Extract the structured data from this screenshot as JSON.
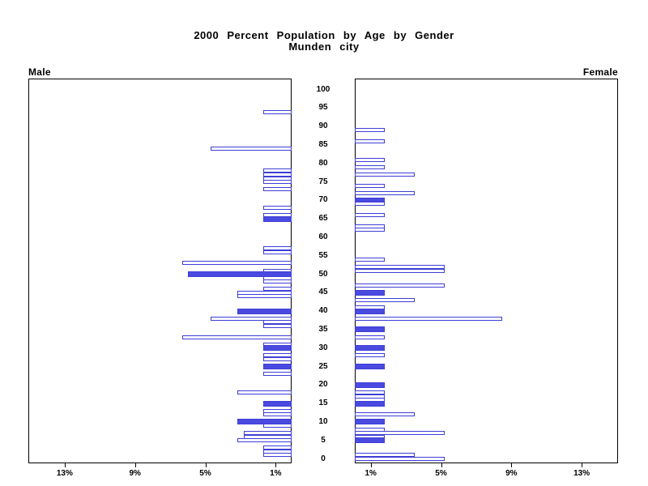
{
  "chart_data": {
    "type": "bar",
    "subtype": "population-pyramid",
    "title": "2000 Percent Population by Age by Gender",
    "subtitle": "Munden city",
    "panels": {
      "left": "Male",
      "right": "Female"
    },
    "age_axis": {
      "tick_labels": [
        "100",
        "95",
        "90",
        "85",
        "80",
        "75",
        "70",
        "65",
        "60",
        "55",
        "50",
        "45",
        "40",
        "35",
        "30",
        "25",
        "20",
        "15",
        "10",
        "5",
        "0"
      ],
      "range": [
        0,
        100
      ]
    },
    "pct_axis": {
      "male_tick_labels": [
        "13%",
        "9%",
        "5%",
        "1%"
      ],
      "female_tick_labels": [
        "1%",
        "5%",
        "9%",
        "13%"
      ],
      "tick_values": [
        13,
        9,
        5,
        1
      ],
      "unit": "%",
      "max": 14.5,
      "grid": false
    },
    "colors": {
      "bar_outline": "#3e3ed6",
      "bar_solid_fill": "#4a4ae0",
      "axis": "#000000",
      "background": "#ffffff"
    },
    "male": [
      {
        "age": 94,
        "pct": 1.6,
        "solid": false
      },
      {
        "age": 84,
        "pct": 4.6,
        "solid": false
      },
      {
        "age": 78,
        "pct": 1.6,
        "solid": false
      },
      {
        "age": 77,
        "pct": 1.6,
        "solid": false
      },
      {
        "age": 76,
        "pct": 1.6,
        "solid": false
      },
      {
        "age": 75,
        "pct": 1.6,
        "solid": false
      },
      {
        "age": 73,
        "pct": 1.6,
        "solid": false
      },
      {
        "age": 68,
        "pct": 1.6,
        "solid": false
      },
      {
        "age": 66,
        "pct": 1.6,
        "solid": false
      },
      {
        "age": 65,
        "pct": 1.6,
        "solid": true
      },
      {
        "age": 57,
        "pct": 1.6,
        "solid": false
      },
      {
        "age": 56,
        "pct": 1.6,
        "solid": false
      },
      {
        "age": 53,
        "pct": 6.2,
        "solid": false
      },
      {
        "age": 51,
        "pct": 1.6,
        "solid": false
      },
      {
        "age": 50,
        "pct": 5.9,
        "solid": true
      },
      {
        "age": 49,
        "pct": 1.6,
        "solid": false
      },
      {
        "age": 48,
        "pct": 1.6,
        "solid": false
      },
      {
        "age": 46,
        "pct": 1.6,
        "solid": false
      },
      {
        "age": 45,
        "pct": 3.1,
        "solid": false
      },
      {
        "age": 44,
        "pct": 3.1,
        "solid": false
      },
      {
        "age": 40,
        "pct": 3.1,
        "solid": true
      },
      {
        "age": 38,
        "pct": 4.6,
        "solid": false
      },
      {
        "age": 37,
        "pct": 1.6,
        "solid": false
      },
      {
        "age": 36,
        "pct": 1.6,
        "solid": false
      },
      {
        "age": 33,
        "pct": 6.2,
        "solid": false
      },
      {
        "age": 31,
        "pct": 1.6,
        "solid": false
      },
      {
        "age": 30,
        "pct": 1.6,
        "solid": true
      },
      {
        "age": 28,
        "pct": 1.6,
        "solid": false
      },
      {
        "age": 27,
        "pct": 1.6,
        "solid": false
      },
      {
        "age": 25,
        "pct": 1.6,
        "solid": true
      },
      {
        "age": 23,
        "pct": 1.6,
        "solid": false
      },
      {
        "age": 18,
        "pct": 3.1,
        "solid": false
      },
      {
        "age": 15,
        "pct": 1.6,
        "solid": true
      },
      {
        "age": 13,
        "pct": 1.6,
        "solid": false
      },
      {
        "age": 12,
        "pct": 1.6,
        "solid": false
      },
      {
        "age": 10,
        "pct": 3.1,
        "solid": true
      },
      {
        "age": 9,
        "pct": 1.6,
        "solid": false
      },
      {
        "age": 7,
        "pct": 2.7,
        "solid": false
      },
      {
        "age": 6,
        "pct": 2.7,
        "solid": false
      },
      {
        "age": 5,
        "pct": 3.1,
        "solid": false
      },
      {
        "age": 3,
        "pct": 1.6,
        "solid": false
      },
      {
        "age": 2,
        "pct": 1.6,
        "solid": false
      },
      {
        "age": 1,
        "pct": 1.6,
        "solid": false
      }
    ],
    "female": [
      {
        "age": 89,
        "pct": 1.7,
        "solid": false
      },
      {
        "age": 86,
        "pct": 1.7,
        "solid": false
      },
      {
        "age": 81,
        "pct": 1.7,
        "solid": false
      },
      {
        "age": 79,
        "pct": 1.7,
        "solid": false
      },
      {
        "age": 77,
        "pct": 3.4,
        "solid": false
      },
      {
        "age": 74,
        "pct": 1.7,
        "solid": false
      },
      {
        "age": 72,
        "pct": 3.4,
        "solid": false
      },
      {
        "age": 70,
        "pct": 1.7,
        "solid": true
      },
      {
        "age": 69,
        "pct": 1.7,
        "solid": false
      },
      {
        "age": 66,
        "pct": 1.7,
        "solid": false
      },
      {
        "age": 63,
        "pct": 1.7,
        "solid": false
      },
      {
        "age": 62,
        "pct": 1.7,
        "solid": false
      },
      {
        "age": 54,
        "pct": 1.7,
        "solid": false
      },
      {
        "age": 52,
        "pct": 5.1,
        "solid": false
      },
      {
        "age": 51,
        "pct": 5.1,
        "solid": false
      },
      {
        "age": 47,
        "pct": 5.1,
        "solid": false
      },
      {
        "age": 45,
        "pct": 1.7,
        "solid": true
      },
      {
        "age": 43,
        "pct": 3.4,
        "solid": false
      },
      {
        "age": 41,
        "pct": 1.7,
        "solid": false
      },
      {
        "age": 40,
        "pct": 1.7,
        "solid": true
      },
      {
        "age": 38,
        "pct": 8.4,
        "solid": false
      },
      {
        "age": 35,
        "pct": 1.7,
        "solid": true
      },
      {
        "age": 33,
        "pct": 1.7,
        "solid": false
      },
      {
        "age": 30,
        "pct": 1.7,
        "solid": true
      },
      {
        "age": 28,
        "pct": 1.7,
        "solid": false
      },
      {
        "age": 25,
        "pct": 1.7,
        "solid": true
      },
      {
        "age": 20,
        "pct": 1.7,
        "solid": true
      },
      {
        "age": 18,
        "pct": 1.7,
        "solid": false
      },
      {
        "age": 17,
        "pct": 1.7,
        "solid": false
      },
      {
        "age": 16,
        "pct": 1.7,
        "solid": false
      },
      {
        "age": 15,
        "pct": 1.7,
        "solid": true
      },
      {
        "age": 12,
        "pct": 3.4,
        "solid": false
      },
      {
        "age": 10,
        "pct": 1.7,
        "solid": true
      },
      {
        "age": 8,
        "pct": 1.7,
        "solid": false
      },
      {
        "age": 7,
        "pct": 5.1,
        "solid": false
      },
      {
        "age": 6,
        "pct": 1.7,
        "solid": false
      },
      {
        "age": 5,
        "pct": 1.7,
        "solid": true
      },
      {
        "age": 1,
        "pct": 3.4,
        "solid": false
      },
      {
        "age": 0,
        "pct": 5.1,
        "solid": false
      }
    ]
  }
}
